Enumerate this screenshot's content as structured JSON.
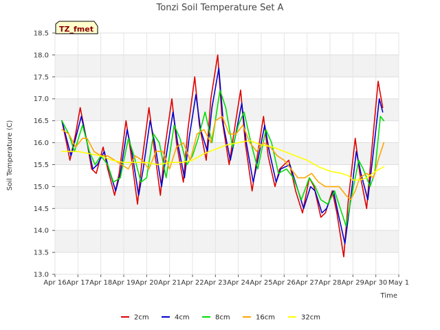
{
  "chart_data": {
    "type": "line",
    "title": "Tonzi Soil Temperature Set A",
    "xlabel": "Time",
    "ylabel": "Soil Temperature (C)",
    "badge": "TZ_fmet",
    "ylim": [
      13.0,
      18.5
    ],
    "yticks": [
      "13.0",
      "13.5",
      "14.0",
      "14.5",
      "15.0",
      "15.5",
      "16.0",
      "16.5",
      "17.0",
      "17.5",
      "18.0",
      "18.5"
    ],
    "xlim": [
      0,
      15
    ],
    "xtick_labels": [
      "Apr 16",
      "Apr 17",
      "Apr 18",
      "Apr 19",
      "Apr 20",
      "Apr 21",
      "Apr 22",
      "Apr 23",
      "Apr 24",
      "Apr 25",
      "Apr 26",
      "Apr 27",
      "Apr 28",
      "Apr 29",
      "Apr 30",
      "May 1"
    ],
    "grid": true,
    "legend_position": "bottom",
    "series": [
      {
        "name": "2cm",
        "color": "#dd0000",
        "x": [
          0.3,
          0.5,
          0.65,
          0.9,
          1.1,
          1.4,
          1.6,
          1.8,
          2.1,
          2.3,
          2.6,
          2.8,
          3.1,
          3.3,
          3.6,
          3.8,
          4.1,
          4.3,
          4.6,
          4.8,
          5.1,
          5.3,
          5.6,
          5.8,
          6.1,
          6.3,
          6.6,
          6.8,
          7.1,
          7.3,
          7.6,
          7.8,
          8.1,
          8.3,
          8.6,
          8.8,
          9.1,
          9.3,
          9.6,
          9.8,
          10.2,
          10.5,
          10.8,
          11.1,
          11.3,
          11.6,
          11.8,
          12.1,
          12.3,
          12.6,
          12.8,
          13.1,
          13.3,
          13.6,
          13.8,
          14.1,
          14.3
        ],
        "values": [
          16.5,
          16.0,
          15.6,
          16.2,
          16.8,
          16.0,
          15.4,
          15.3,
          15.9,
          15.4,
          14.8,
          15.3,
          16.5,
          15.8,
          14.6,
          15.6,
          16.8,
          16.0,
          14.8,
          15.9,
          17.0,
          16.0,
          15.1,
          16.3,
          17.5,
          16.4,
          15.6,
          17.0,
          18.0,
          16.5,
          15.5,
          16.2,
          17.2,
          16.0,
          14.9,
          15.6,
          16.6,
          15.7,
          15.0,
          15.4,
          15.6,
          14.9,
          14.4,
          15.2,
          15.0,
          14.3,
          14.4,
          14.9,
          14.4,
          13.4,
          14.7,
          16.1,
          15.3,
          14.5,
          15.7,
          17.4,
          16.8
        ]
      },
      {
        "name": "4cm",
        "color": "#0000cc",
        "x": [
          0.3,
          0.5,
          0.7,
          0.9,
          1.15,
          1.4,
          1.65,
          1.85,
          2.15,
          2.35,
          2.65,
          2.85,
          3.15,
          3.35,
          3.65,
          3.85,
          4.15,
          4.35,
          4.65,
          4.85,
          5.15,
          5.35,
          5.65,
          5.85,
          6.15,
          6.35,
          6.65,
          6.85,
          7.15,
          7.35,
          7.65,
          7.85,
          8.15,
          8.35,
          8.65,
          8.85,
          9.15,
          9.35,
          9.65,
          9.85,
          10.25,
          10.55,
          10.85,
          11.15,
          11.35,
          11.65,
          11.85,
          12.15,
          12.35,
          12.65,
          12.85,
          13.15,
          13.35,
          13.65,
          13.85,
          14.15,
          14.3
        ],
        "values": [
          16.5,
          16.1,
          15.7,
          16.1,
          16.6,
          16.0,
          15.4,
          15.5,
          15.8,
          15.4,
          14.9,
          15.3,
          16.3,
          15.8,
          14.8,
          15.4,
          16.5,
          16.0,
          15.0,
          15.7,
          16.7,
          16.0,
          15.2,
          16.1,
          17.1,
          16.3,
          15.8,
          16.8,
          17.7,
          16.4,
          15.6,
          16.1,
          16.9,
          16.0,
          15.1,
          15.6,
          16.4,
          15.8,
          15.1,
          15.4,
          15.5,
          15.0,
          14.5,
          15.0,
          14.9,
          14.4,
          14.5,
          14.9,
          14.4,
          13.7,
          14.5,
          15.8,
          15.3,
          14.7,
          15.6,
          17.0,
          16.7
        ]
      },
      {
        "name": "8cm",
        "color": "#00dd00",
        "x": [
          0.3,
          0.6,
          0.85,
          1.2,
          1.5,
          1.75,
          2.0,
          2.3,
          2.55,
          2.85,
          3.2,
          3.45,
          3.75,
          4.0,
          4.3,
          4.55,
          4.85,
          5.2,
          5.45,
          5.75,
          6.0,
          6.25,
          6.55,
          6.85,
          7.2,
          7.45,
          7.75,
          8.0,
          8.25,
          8.55,
          8.85,
          9.2,
          9.45,
          9.75,
          10.1,
          10.4,
          10.75,
          11.1,
          11.35,
          11.6,
          11.9,
          12.2,
          12.45,
          12.7,
          12.95,
          13.25,
          13.45,
          13.75,
          13.95,
          14.2,
          14.35
        ],
        "values": [
          16.5,
          16.2,
          15.8,
          16.4,
          15.8,
          15.5,
          15.7,
          15.5,
          15.1,
          15.2,
          16.1,
          15.7,
          15.1,
          15.2,
          16.2,
          16.0,
          15.2,
          16.4,
          16.1,
          15.5,
          15.7,
          16.1,
          16.7,
          16.0,
          17.2,
          16.8,
          15.9,
          16.4,
          16.7,
          16.0,
          15.4,
          16.3,
          16.0,
          15.3,
          15.4,
          15.2,
          14.7,
          15.2,
          15.0,
          14.7,
          14.6,
          14.9,
          14.5,
          14.1,
          14.8,
          15.6,
          15.4,
          15.0,
          15.3,
          16.6,
          16.5
        ]
      },
      {
        "name": "16cm",
        "color": "#ffa500",
        "x": [
          0.3,
          0.6,
          0.9,
          1.2,
          1.4,
          1.7,
          2.0,
          2.3,
          2.6,
          2.9,
          3.2,
          3.5,
          3.8,
          4.1,
          4.4,
          4.7,
          5.0,
          5.3,
          5.6,
          5.9,
          6.2,
          6.5,
          6.8,
          7.0,
          7.3,
          7.6,
          7.9,
          8.2,
          8.5,
          8.8,
          9.1,
          9.4,
          9.7,
          10.0,
          10.3,
          10.6,
          10.9,
          11.2,
          11.5,
          11.8,
          12.1,
          12.4,
          12.7,
          12.9,
          13.1,
          13.3,
          13.6,
          13.9,
          14.1,
          14.35
        ],
        "values": [
          16.3,
          16.2,
          15.9,
          16.1,
          16.1,
          15.8,
          15.7,
          15.7,
          15.6,
          15.5,
          15.4,
          15.7,
          15.6,
          15.4,
          15.8,
          15.8,
          15.4,
          15.9,
          16.0,
          15.6,
          16.2,
          16.3,
          16.0,
          16.5,
          16.6,
          16.2,
          16.2,
          16.4,
          16.0,
          15.8,
          16.0,
          15.9,
          15.7,
          15.6,
          15.4,
          15.2,
          15.2,
          15.3,
          15.1,
          15.0,
          15.0,
          15.0,
          14.8,
          14.7,
          14.9,
          15.2,
          15.3,
          15.2,
          15.6,
          16.0
        ]
      },
      {
        "name": "32cm",
        "color": "#ffff00",
        "x": [
          0.3,
          1.0,
          1.5,
          2.0,
          2.5,
          3.0,
          3.5,
          4.0,
          4.5,
          5.0,
          5.5,
          6.0,
          6.5,
          7.0,
          7.5,
          8.0,
          8.5,
          9.0,
          9.5,
          10.0,
          10.5,
          11.0,
          11.5,
          12.0,
          12.5,
          12.8,
          13.0,
          13.3,
          13.6,
          14.0,
          14.35
        ],
        "values": [
          15.8,
          15.8,
          15.75,
          15.7,
          15.6,
          15.55,
          15.55,
          15.55,
          15.5,
          15.55,
          15.55,
          15.6,
          15.75,
          15.85,
          15.95,
          16.0,
          16.05,
          15.95,
          15.9,
          15.8,
          15.7,
          15.6,
          15.45,
          15.35,
          15.3,
          15.25,
          15.15,
          15.15,
          15.2,
          15.35,
          15.45
        ]
      }
    ]
  }
}
